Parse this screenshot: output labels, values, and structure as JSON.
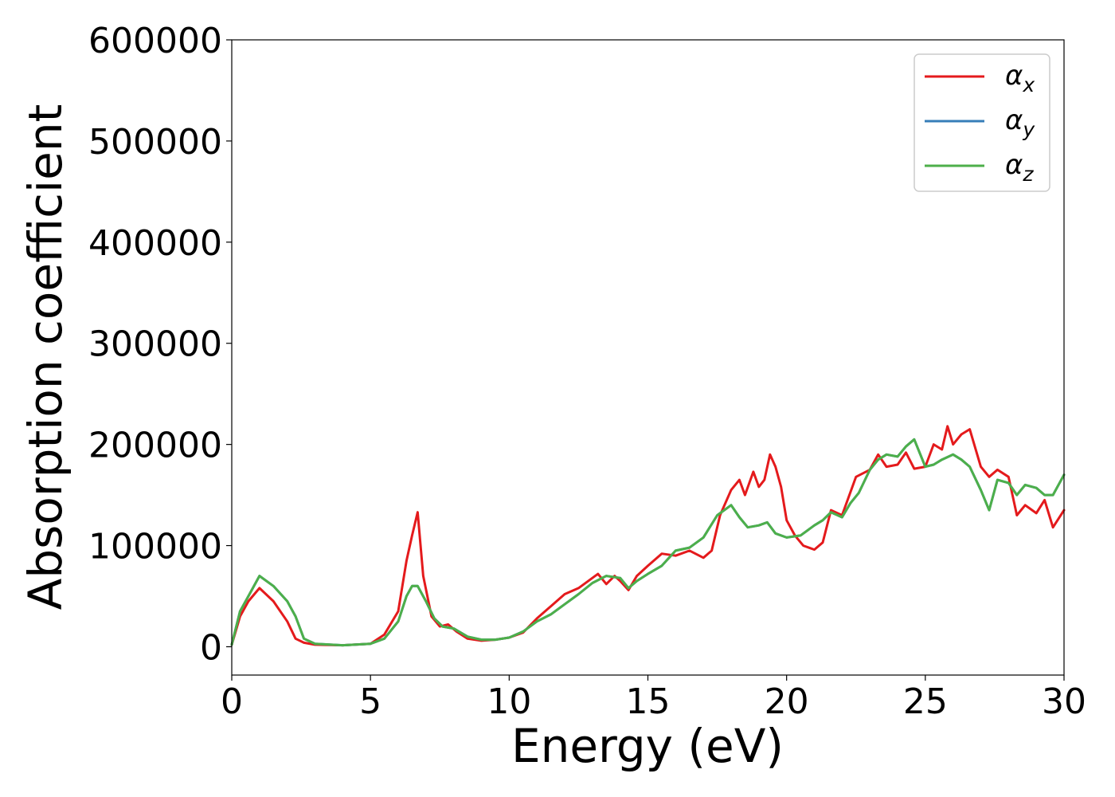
{
  "chart_data": {
    "type": "line",
    "xlabel": "Energy (eV)",
    "ylabel": "Absorption coefficient",
    "xlim": [
      0,
      30
    ],
    "ylim": [
      -28000,
      600000
    ],
    "xticks": [
      0,
      5,
      10,
      15,
      20,
      25,
      30
    ],
    "xtick_labels": [
      "0",
      "5",
      "10",
      "15",
      "20",
      "25",
      "30"
    ],
    "yticks": [
      0,
      100000,
      200000,
      300000,
      400000,
      500000,
      600000
    ],
    "ytick_labels": [
      "0",
      "100000",
      "200000",
      "300000",
      "400000",
      "500000",
      "600000"
    ],
    "grid": false,
    "legend_position": "top-right",
    "series": [
      {
        "name": "αx",
        "symbol": "α",
        "subscript": "x",
        "color": "#e41a1c",
        "x": [
          0,
          0.3,
          0.6,
          1.0,
          1.5,
          2.0,
          2.3,
          2.6,
          3.0,
          4.0,
          5.0,
          5.5,
          6.0,
          6.3,
          6.5,
          6.7,
          6.9,
          7.2,
          7.5,
          7.8,
          8.1,
          8.5,
          9.0,
          9.5,
          10.0,
          10.5,
          11.0,
          11.5,
          12.0,
          12.5,
          13.0,
          13.2,
          13.5,
          13.8,
          14.0,
          14.3,
          14.6,
          15.0,
          15.5,
          16.0,
          16.5,
          17.0,
          17.3,
          17.6,
          18.0,
          18.3,
          18.5,
          18.8,
          19.0,
          19.2,
          19.4,
          19.6,
          19.8,
          20.0,
          20.3,
          20.6,
          21.0,
          21.3,
          21.6,
          22.0,
          22.5,
          23.0,
          23.3,
          23.6,
          24.0,
          24.3,
          24.6,
          25.0,
          25.3,
          25.6,
          25.8,
          26.0,
          26.3,
          26.6,
          27.0,
          27.3,
          27.6,
          28.0,
          28.3,
          28.6,
          29.0,
          29.3,
          29.6,
          30.0
        ],
        "y": [
          2000,
          30000,
          45000,
          58000,
          45000,
          25000,
          8000,
          4000,
          2000,
          1500,
          3000,
          12000,
          35000,
          85000,
          110000,
          133000,
          70000,
          30000,
          20000,
          22000,
          15000,
          8000,
          6000,
          7000,
          9000,
          14000,
          28000,
          40000,
          52000,
          58000,
          68000,
          72000,
          62000,
          70000,
          65000,
          56000,
          70000,
          80000,
          92000,
          90000,
          95000,
          88000,
          95000,
          130000,
          155000,
          165000,
          150000,
          173000,
          158000,
          165000,
          190000,
          178000,
          158000,
          125000,
          110000,
          100000,
          96000,
          103000,
          135000,
          130000,
          168000,
          175000,
          190000,
          178000,
          180000,
          192000,
          176000,
          178000,
          200000,
          195000,
          218000,
          200000,
          210000,
          215000,
          178000,
          168000,
          175000,
          168000,
          130000,
          140000,
          132000,
          145000,
          118000,
          135000
        ],
        "line_style": "solid"
      },
      {
        "name": "αy",
        "symbol": "α",
        "subscript": "y",
        "color": "#377eb8",
        "x": [
          0,
          0.3,
          0.6,
          1.0,
          1.5,
          2.0,
          2.3,
          2.6,
          3.0,
          4.0,
          5.0,
          5.5,
          6.0,
          6.3,
          6.5,
          6.7,
          7.0,
          7.3,
          7.6,
          8.0,
          8.5,
          9.0,
          9.5,
          10.0,
          10.5,
          11.0,
          11.5,
          12.0,
          12.5,
          13.0,
          13.5,
          14.0,
          14.3,
          14.6,
          15.0,
          15.5,
          16.0,
          16.5,
          17.0,
          17.5,
          18.0,
          18.3,
          18.6,
          19.0,
          19.3,
          19.6,
          20.0,
          20.5,
          21.0,
          21.3,
          21.6,
          22.0,
          22.3,
          22.6,
          23.0,
          23.3,
          23.6,
          24.0,
          24.3,
          24.6,
          25.0,
          25.3,
          25.6,
          26.0,
          26.3,
          26.6,
          27.0,
          27.3,
          27.6,
          28.0,
          28.3,
          28.6,
          29.0,
          29.3,
          29.6,
          30.0
        ],
        "y": [
          2000,
          35000,
          50000,
          70000,
          60000,
          45000,
          30000,
          8000,
          3000,
          1500,
          3000,
          8000,
          25000,
          50000,
          60000,
          60000,
          45000,
          28000,
          20000,
          18000,
          10000,
          7000,
          7000,
          9000,
          15000,
          25000,
          32000,
          42000,
          52000,
          63000,
          70000,
          68000,
          58000,
          65000,
          72000,
          80000,
          95000,
          98000,
          108000,
          130000,
          140000,
          128000,
          118000,
          120000,
          123000,
          112000,
          108000,
          110000,
          120000,
          125000,
          133000,
          128000,
          142000,
          152000,
          175000,
          185000,
          190000,
          188000,
          198000,
          205000,
          178000,
          180000,
          185000,
          190000,
          185000,
          178000,
          155000,
          135000,
          165000,
          162000,
          150000,
          160000,
          157000,
          150000,
          150000,
          170000
        ],
        "line_style": "solid"
      },
      {
        "name": "αz",
        "symbol": "α",
        "subscript": "z",
        "color": "#4daf4a",
        "x": [
          0,
          0.3,
          0.6,
          1.0,
          1.5,
          2.0,
          2.3,
          2.6,
          3.0,
          4.0,
          5.0,
          5.5,
          6.0,
          6.3,
          6.5,
          6.7,
          7.0,
          7.3,
          7.6,
          8.0,
          8.5,
          9.0,
          9.5,
          10.0,
          10.5,
          11.0,
          11.5,
          12.0,
          12.5,
          13.0,
          13.5,
          14.0,
          14.3,
          14.6,
          15.0,
          15.5,
          16.0,
          16.5,
          17.0,
          17.5,
          18.0,
          18.3,
          18.6,
          19.0,
          19.3,
          19.6,
          20.0,
          20.5,
          21.0,
          21.3,
          21.6,
          22.0,
          22.3,
          22.6,
          23.0,
          23.3,
          23.6,
          24.0,
          24.3,
          24.6,
          25.0,
          25.3,
          25.6,
          26.0,
          26.3,
          26.6,
          27.0,
          27.3,
          27.6,
          28.0,
          28.3,
          28.6,
          29.0,
          29.3,
          29.6,
          30.0
        ],
        "y": [
          2000,
          35000,
          50000,
          70000,
          60000,
          45000,
          30000,
          8000,
          3000,
          1500,
          3000,
          8000,
          25000,
          50000,
          60000,
          60000,
          45000,
          28000,
          20000,
          18000,
          10000,
          7000,
          7000,
          9000,
          15000,
          25000,
          32000,
          42000,
          52000,
          63000,
          70000,
          68000,
          58000,
          65000,
          72000,
          80000,
          95000,
          98000,
          108000,
          130000,
          140000,
          128000,
          118000,
          120000,
          123000,
          112000,
          108000,
          110000,
          120000,
          125000,
          133000,
          128000,
          142000,
          152000,
          175000,
          185000,
          190000,
          188000,
          198000,
          205000,
          178000,
          180000,
          185000,
          190000,
          185000,
          178000,
          155000,
          135000,
          165000,
          162000,
          150000,
          160000,
          157000,
          150000,
          150000,
          170000
        ],
        "line_style": "solid"
      }
    ]
  }
}
